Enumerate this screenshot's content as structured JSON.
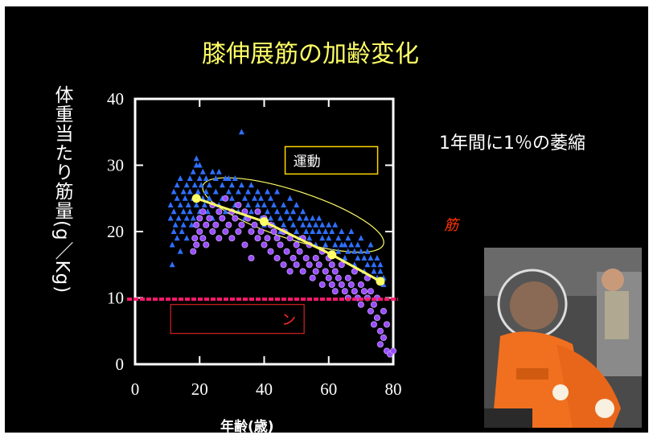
{
  "slide": {
    "title": "膝伸展筋の加齢変化",
    "rate_text": "1年間に1％の萎縮",
    "muscle_note": "筋"
  },
  "photo": {
    "description_icon": "astronaut-photo-icon",
    "colors": {
      "suit": "#f07020",
      "background": "#3c3c3c"
    }
  },
  "chart_data": {
    "type": "scatter",
    "title": "",
    "xlabel": "年齢(歳)",
    "ylabel": "体重当たり筋量(g／Kg)",
    "xlim": [
      0,
      80
    ],
    "ylim": [
      0,
      40
    ],
    "x_ticks": [
      "0",
      "20",
      "40",
      "60",
      "80"
    ],
    "y_ticks": [
      "0",
      "10",
      "20",
      "30",
      "40"
    ],
    "grid": false,
    "series": [
      {
        "name": "",
        "marker": "triangle",
        "color": "#2f6fff",
        "points": [
          [
            11,
            22
          ],
          [
            11,
            24
          ],
          [
            11.5,
            18
          ],
          [
            11.5,
            15
          ],
          [
            12,
            20
          ],
          [
            12,
            23
          ],
          [
            12,
            26
          ],
          [
            12.5,
            21
          ],
          [
            13,
            19
          ],
          [
            13,
            25
          ],
          [
            13,
            27
          ],
          [
            13.5,
            22
          ],
          [
            14,
            17
          ],
          [
            14,
            24
          ],
          [
            14,
            28
          ],
          [
            14.5,
            20
          ],
          [
            15,
            23
          ],
          [
            15,
            26
          ],
          [
            15,
            21
          ],
          [
            15.5,
            25
          ],
          [
            16,
            22
          ],
          [
            16,
            27
          ],
          [
            16,
            19
          ],
          [
            16.5,
            24
          ],
          [
            17,
            28
          ],
          [
            17,
            23
          ],
          [
            17,
            26
          ],
          [
            17.5,
            21
          ],
          [
            18,
            25
          ],
          [
            18,
            29
          ],
          [
            18,
            22
          ],
          [
            18.5,
            27
          ],
          [
            19,
            30
          ],
          [
            19,
            24
          ],
          [
            19,
            31
          ],
          [
            19.5,
            26
          ],
          [
            20,
            28
          ],
          [
            20,
            23
          ],
          [
            20,
            30
          ],
          [
            20.5,
            27
          ],
          [
            21,
            25
          ],
          [
            21,
            29
          ],
          [
            21.5,
            24
          ],
          [
            22,
            26
          ],
          [
            22,
            28
          ],
          [
            22.5,
            23
          ],
          [
            23,
            27
          ],
          [
            23,
            25
          ],
          [
            24,
            29
          ],
          [
            24,
            22
          ],
          [
            25,
            28
          ],
          [
            25,
            26
          ],
          [
            26,
            24
          ],
          [
            26,
            29
          ],
          [
            27,
            27
          ],
          [
            27,
            25
          ],
          [
            28,
            28
          ],
          [
            28,
            23
          ],
          [
            29,
            26
          ],
          [
            29,
            28
          ],
          [
            30,
            25
          ],
          [
            30,
            27
          ],
          [
            31,
            24
          ],
          [
            31,
            28
          ],
          [
            32,
            26
          ],
          [
            32,
            23
          ],
          [
            33,
            27
          ],
          [
            33,
            35
          ],
          [
            34,
            25
          ],
          [
            34,
            22
          ],
          [
            35,
            26
          ],
          [
            35,
            24
          ],
          [
            36,
            27
          ],
          [
            36,
            23
          ],
          [
            37,
            25
          ],
          [
            37,
            21
          ],
          [
            38,
            26
          ],
          [
            38,
            24
          ],
          [
            39,
            22
          ],
          [
            39,
            25
          ],
          [
            40,
            24
          ],
          [
            40,
            21
          ],
          [
            41,
            23
          ],
          [
            41,
            26
          ],
          [
            42,
            22
          ],
          [
            42,
            25
          ],
          [
            43,
            21
          ],
          [
            43,
            24
          ],
          [
            44,
            23
          ],
          [
            44,
            26
          ],
          [
            45,
            22
          ],
          [
            45,
            20
          ],
          [
            46,
            24
          ],
          [
            46,
            21
          ],
          [
            47,
            23
          ],
          [
            47,
            20
          ],
          [
            48,
            22
          ],
          [
            48,
            25
          ],
          [
            49,
            21
          ],
          [
            49,
            23
          ],
          [
            50,
            24
          ],
          [
            50,
            20
          ],
          [
            51,
            22
          ],
          [
            51,
            19
          ],
          [
            52,
            21
          ],
          [
            52,
            23
          ],
          [
            53,
            20
          ],
          [
            53,
            22
          ],
          [
            54,
            21
          ],
          [
            54,
            19
          ],
          [
            55,
            22
          ],
          [
            55,
            20
          ],
          [
            56,
            21
          ],
          [
            56,
            18
          ],
          [
            57,
            20
          ],
          [
            57,
            22
          ],
          [
            58,
            19
          ],
          [
            58,
            21
          ],
          [
            59,
            18
          ],
          [
            59,
            20
          ],
          [
            60,
            19
          ],
          [
            60,
            21
          ],
          [
            61,
            17
          ],
          [
            61,
            20
          ],
          [
            62,
            18
          ],
          [
            62,
            21
          ],
          [
            63,
            19
          ],
          [
            63,
            17
          ],
          [
            64,
            20
          ],
          [
            64,
            18
          ],
          [
            65,
            18
          ],
          [
            65,
            16
          ],
          [
            66,
            19
          ],
          [
            66,
            17
          ],
          [
            67,
            18
          ],
          [
            67,
            20
          ],
          [
            68,
            17
          ],
          [
            68,
            15
          ],
          [
            69,
            18
          ],
          [
            69,
            16
          ],
          [
            70,
            17
          ],
          [
            70,
            19
          ],
          [
            71,
            16
          ],
          [
            71,
            14
          ],
          [
            72,
            17
          ],
          [
            72,
            15
          ],
          [
            73,
            16
          ],
          [
            73,
            18
          ],
          [
            74,
            15
          ],
          [
            74,
            14
          ],
          [
            75,
            16
          ],
          [
            75,
            13
          ],
          [
            76,
            14
          ],
          [
            76,
            15
          ],
          [
            77,
            13
          ],
          [
            77,
            12
          ]
        ]
      },
      {
        "name": "",
        "marker": "circle",
        "color": "#9a4dff",
        "points": [
          [
            18,
            17
          ],
          [
            18.5,
            19
          ],
          [
            19,
            21
          ],
          [
            19,
            18
          ],
          [
            20,
            20
          ],
          [
            20,
            22
          ],
          [
            21,
            19
          ],
          [
            21,
            23
          ],
          [
            22,
            21
          ],
          [
            22,
            18
          ],
          [
            23,
            22
          ],
          [
            24,
            20
          ],
          [
            24,
            24
          ],
          [
            25,
            21
          ],
          [
            26,
            23
          ],
          [
            26,
            19
          ],
          [
            27,
            22
          ],
          [
            28,
            20
          ],
          [
            28,
            25
          ],
          [
            29,
            21
          ],
          [
            30,
            23
          ],
          [
            30,
            19
          ],
          [
            31,
            22
          ],
          [
            32,
            20
          ],
          [
            32,
            24
          ],
          [
            33,
            21
          ],
          [
            34,
            23
          ],
          [
            34,
            18
          ],
          [
            35,
            22
          ],
          [
            36,
            20
          ],
          [
            36,
            16
          ],
          [
            37,
            21
          ],
          [
            38,
            19
          ],
          [
            38,
            23
          ],
          [
            39,
            20
          ],
          [
            40,
            18
          ],
          [
            40,
            22
          ],
          [
            41,
            19
          ],
          [
            42,
            17
          ],
          [
            42,
            21
          ],
          [
            43,
            20
          ],
          [
            44,
            16
          ],
          [
            44,
            19
          ],
          [
            45,
            18
          ],
          [
            46,
            20
          ],
          [
            46,
            15
          ],
          [
            47,
            17
          ],
          [
            48,
            19
          ],
          [
            48,
            14
          ],
          [
            49,
            16
          ],
          [
            50,
            18
          ],
          [
            50,
            15
          ],
          [
            51,
            17
          ],
          [
            52,
            14
          ],
          [
            52,
            19
          ],
          [
            53,
            16
          ],
          [
            54,
            15
          ],
          [
            54,
            18
          ],
          [
            55,
            13
          ],
          [
            56,
            16
          ],
          [
            56,
            14
          ],
          [
            57,
            15
          ],
          [
            58,
            12
          ],
          [
            58,
            17
          ],
          [
            59,
            14
          ],
          [
            60,
            13
          ],
          [
            60,
            16
          ],
          [
            61,
            12
          ],
          [
            61,
            15
          ],
          [
            62,
            11
          ],
          [
            62,
            14
          ],
          [
            63,
            13
          ],
          [
            64,
            12
          ],
          [
            64,
            15
          ],
          [
            65,
            11
          ],
          [
            66,
            13
          ],
          [
            66,
            10
          ],
          [
            67,
            12
          ],
          [
            68,
            11
          ],
          [
            68,
            14
          ],
          [
            69,
            10
          ],
          [
            70,
            12
          ],
          [
            70,
            9
          ],
          [
            71,
            11
          ],
          [
            72,
            10
          ],
          [
            72,
            13
          ],
          [
            73,
            8
          ],
          [
            73,
            11
          ],
          [
            74,
            9
          ],
          [
            74,
            6
          ],
          [
            75,
            10
          ],
          [
            75,
            7
          ],
          [
            76,
            5
          ],
          [
            76,
            3
          ],
          [
            77,
            8
          ],
          [
            77,
            4
          ],
          [
            78,
            2
          ],
          [
            78,
            6
          ],
          [
            79,
            1.5
          ],
          [
            80,
            2
          ]
        ]
      },
      {
        "name": "",
        "marker": "line-circle",
        "color": "#ffff66",
        "points": [
          [
            19,
            25
          ],
          [
            40,
            21.5
          ],
          [
            61,
            16.5
          ],
          [
            76,
            12.5
          ]
        ]
      }
    ],
    "threshold_line": {
      "y": 9.8,
      "color": "#ff1a6e"
    },
    "annotations": [
      {
        "label": "運動",
        "box_color": "#ffd700",
        "text_color": "#ffffff"
      },
      {
        "label": "ン",
        "box_color": "#ff2a2a",
        "text_color": "#ff2a2a"
      }
    ],
    "ellipse_color": "#ffff66"
  }
}
